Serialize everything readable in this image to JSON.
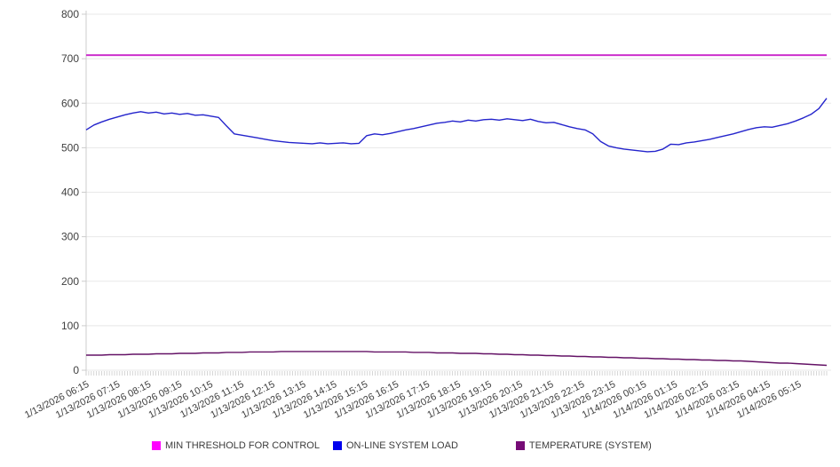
{
  "chart_data": {
    "type": "line",
    "title": "",
    "xlabel": "",
    "ylabel": "",
    "ylim": [
      0,
      800
    ],
    "y_ticks": [
      0,
      100,
      200,
      300,
      400,
      500,
      600,
      700,
      800
    ],
    "grid": "horizontal",
    "legend_position": "bottom",
    "x_minor_ticks": 288,
    "x_tick_labels": [
      "1/13/2026 06:15",
      "1/13/2026 07:15",
      "1/13/2026 08:15",
      "1/13/2026 09:15",
      "1/13/2026 10:15",
      "1/13/2026 11:15",
      "1/13/2026 12:15",
      "1/13/2026 13:15",
      "1/13/2026 14:15",
      "1/13/2026 15:15",
      "1/13/2026 16:15",
      "1/13/2026 17:15",
      "1/13/2026 18:15",
      "1/13/2026 19:15",
      "1/13/2026 20:15",
      "1/13/2026 21:15",
      "1/13/2026 22:15",
      "1/13/2026 23:15",
      "1/14/2026 00:15",
      "1/14/2026 01:15",
      "1/14/2026 02:15",
      "1/14/2026 03:15",
      "1/14/2026 04:15",
      "1/14/2026 05:15"
    ],
    "series": [
      {
        "name": "MIN THRESHOLD FOR CONTROL",
        "type": "threshold",
        "value": 708,
        "line_color": "#cc2fcc",
        "swatch_color": "#ff00ff",
        "stroke_width": 2
      },
      {
        "name": "ON-LINE SYSTEM LOAD",
        "type": "line",
        "line_color": "#2424cc",
        "swatch_color": "#0000ee",
        "stroke_width": 1.4,
        "values": [
          540,
          551,
          558,
          564,
          569,
          574,
          578,
          581,
          578,
          580,
          576,
          578,
          575,
          577,
          573,
          574,
          571,
          568,
          549,
          531,
          528,
          525,
          522,
          519,
          516,
          514,
          512,
          511,
          510,
          509,
          511,
          509,
          510,
          511,
          509,
          510,
          527,
          531,
          529,
          532,
          536,
          540,
          543,
          547,
          551,
          555,
          557,
          560,
          558,
          562,
          560,
          563,
          564,
          562,
          565,
          563,
          561,
          564,
          559,
          556,
          557,
          552,
          547,
          543,
          540,
          531,
          514,
          504,
          500,
          497,
          495,
          493,
          491,
          492,
          497,
          508,
          507,
          511,
          513,
          516,
          519,
          523,
          527,
          531,
          536,
          541,
          545,
          547,
          546,
          550,
          554,
          560,
          567,
          575,
          588,
          611
        ]
      },
      {
        "name": "TEMPERATURE (SYSTEM)",
        "type": "line",
        "line_color": "#641266",
        "swatch_color": "#760c76",
        "stroke_width": 1.4,
        "values": [
          34,
          34,
          34,
          35,
          35,
          35,
          36,
          36,
          36,
          37,
          37,
          37,
          38,
          38,
          38,
          39,
          39,
          39,
          40,
          40,
          40,
          41,
          41,
          41,
          41,
          42,
          42,
          42,
          42,
          42,
          42,
          42,
          42,
          42,
          42,
          42,
          42,
          41,
          41,
          41,
          41,
          41,
          40,
          40,
          40,
          39,
          39,
          39,
          38,
          38,
          38,
          37,
          37,
          36,
          36,
          35,
          35,
          34,
          34,
          33,
          33,
          32,
          32,
          31,
          31,
          30,
          30,
          29,
          29,
          28,
          28,
          27,
          27,
          26,
          26,
          25,
          25,
          24,
          24,
          23,
          23,
          22,
          22,
          21,
          21,
          20,
          19,
          18,
          17,
          16,
          16,
          15,
          14,
          13,
          12,
          11
        ]
      }
    ]
  },
  "colors": {
    "background": "#ffffff",
    "gridline": "#e8e8e8",
    "axis": "#cccccc",
    "minor_tick": "#cccccc",
    "tick_label": "#3f3f3f",
    "legend_text": "#3c3c3c"
  }
}
